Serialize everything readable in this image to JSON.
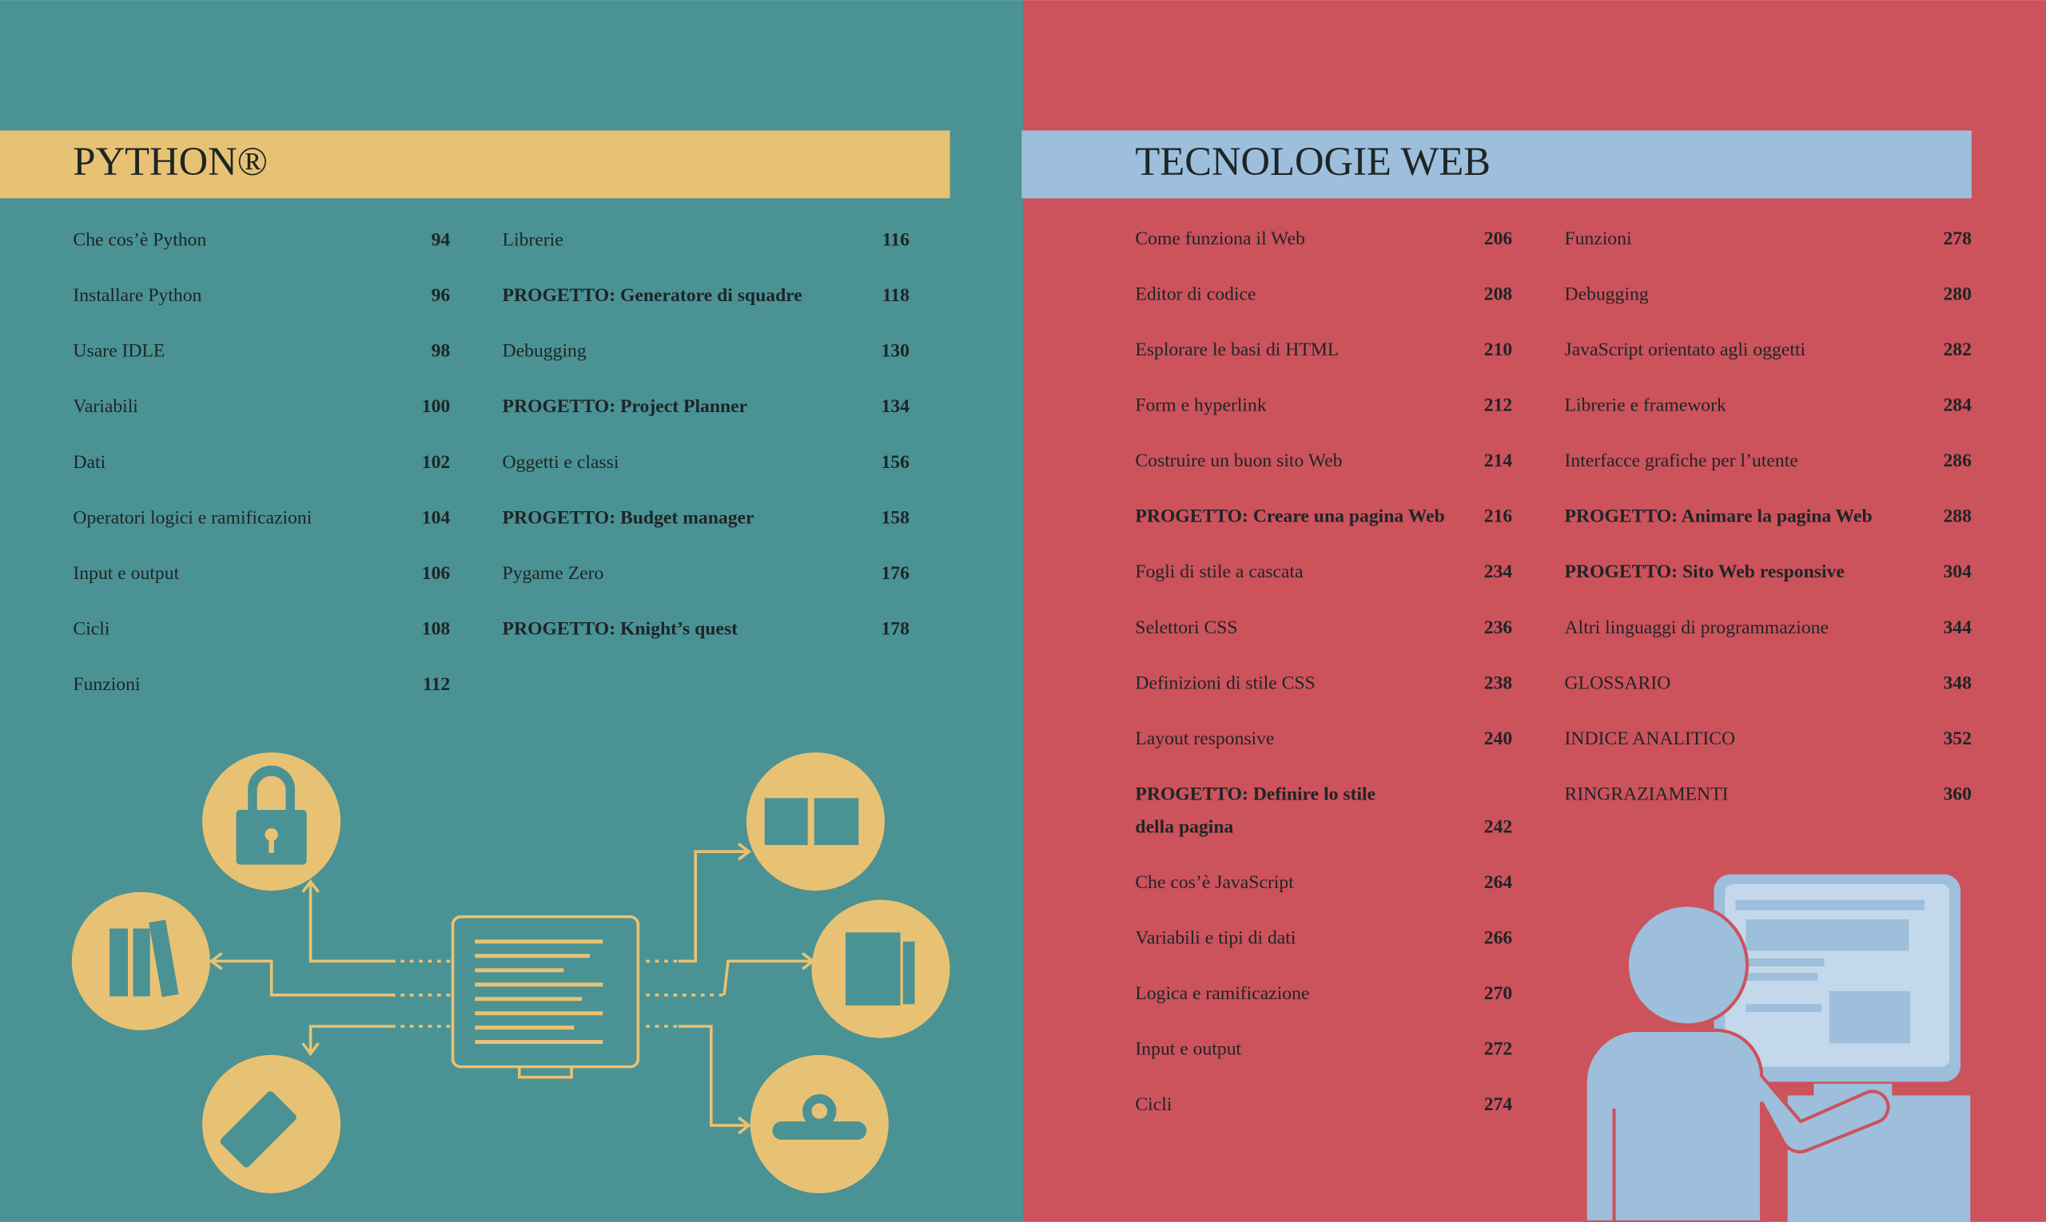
{
  "left": {
    "title": "PYTHON®",
    "columns": [
      [
        {
          "label": "Che cos’è Python",
          "page": 94,
          "bold": false
        },
        {
          "label": "Installare Python",
          "page": 96,
          "bold": false
        },
        {
          "label": "Usare IDLE",
          "page": 98,
          "bold": false
        },
        {
          "label": "Variabili",
          "page": 100,
          "bold": false
        },
        {
          "label": "Dati",
          "page": 102,
          "bold": false
        },
        {
          "label": "Operatori logici e ramificazioni",
          "page": 104,
          "bold": false
        },
        {
          "label": "Input e output",
          "page": 106,
          "bold": false
        },
        {
          "label": "Cicli",
          "page": 108,
          "bold": false
        },
        {
          "label": "Funzioni",
          "page": 112,
          "bold": false
        }
      ],
      [
        {
          "label": "Librerie",
          "page": 116,
          "bold": false
        },
        {
          "label": "PROGETTO: Generatore di squadre",
          "page": 118,
          "bold": true
        },
        {
          "label": "Debugging",
          "page": 130,
          "bold": false
        },
        {
          "label": "PROGETTO: Project Planner",
          "page": 134,
          "bold": true
        },
        {
          "label": "Oggetti e classi",
          "page": 156,
          "bold": false
        },
        {
          "label": "PROGETTO: Budget manager",
          "page": 158,
          "bold": true
        },
        {
          "label": "Pygame Zero",
          "page": 176,
          "bold": false
        },
        {
          "label": "PROGETTO: Knight’s quest",
          "page": 178,
          "bold": true
        }
      ]
    ]
  },
  "right": {
    "title": "TECNOLOGIE WEB",
    "columns": [
      [
        {
          "label": "Come funziona il Web",
          "page": 206,
          "bold": false
        },
        {
          "label": "Editor di codice",
          "page": 208,
          "bold": false
        },
        {
          "label": "Esplorare le basi di HTML",
          "page": 210,
          "bold": false
        },
        {
          "label": "Form e hyperlink",
          "page": 212,
          "bold": false
        },
        {
          "label": "Costruire un buon sito Web",
          "page": 214,
          "bold": false
        },
        {
          "label": "PROGETTO: Creare una pagina Web",
          "page": 216,
          "bold": true
        },
        {
          "label": "Fogli di stile a cascata",
          "page": 234,
          "bold": false
        },
        {
          "label": "Selettori CSS",
          "page": 236,
          "bold": false
        },
        {
          "label": "Definizioni di stile CSS",
          "page": 238,
          "bold": false
        },
        {
          "label": "Layout responsive",
          "page": 240,
          "bold": false
        },
        {
          "label": [
            "PROGETTO: Definire lo stile",
            "della pagina"
          ],
          "page": 242,
          "bold": true
        },
        {
          "label": "Che cos’è JavaScript",
          "page": 264,
          "bold": false
        },
        {
          "label": "Variabili e tipi di dati",
          "page": 266,
          "bold": false
        },
        {
          "label": "Logica e ramificazione",
          "page": 270,
          "bold": false
        },
        {
          "label": "Input e output",
          "page": 272,
          "bold": false
        },
        {
          "label": "Cicli",
          "page": 274,
          "bold": false
        }
      ],
      [
        {
          "label": "Funzioni",
          "page": 278,
          "bold": false
        },
        {
          "label": "Debugging",
          "page": 280,
          "bold": false
        },
        {
          "label": "JavaScript orientato agli oggetti",
          "page": 282,
          "bold": false
        },
        {
          "label": "Librerie e framework",
          "page": 284,
          "bold": false
        },
        {
          "label": "Interfacce grafiche per l’utente",
          "page": 286,
          "bold": false
        },
        {
          "label": "PROGETTO: Animare la pagina Web",
          "page": 288,
          "bold": true
        },
        {
          "label": "PROGETTO: Sito Web responsive",
          "page": 304,
          "bold": true
        },
        {
          "label": "Altri linguaggi di programmazione",
          "page": 344,
          "bold": false
        },
        {
          "label": "GLOSSARIO",
          "page": 348,
          "bold": false
        },
        {
          "label": "INDICE ANALITICO",
          "page": 352,
          "bold": false
        },
        {
          "label": "RINGRAZIAMENTI",
          "page": 360,
          "bold": false
        }
      ]
    ]
  }
}
